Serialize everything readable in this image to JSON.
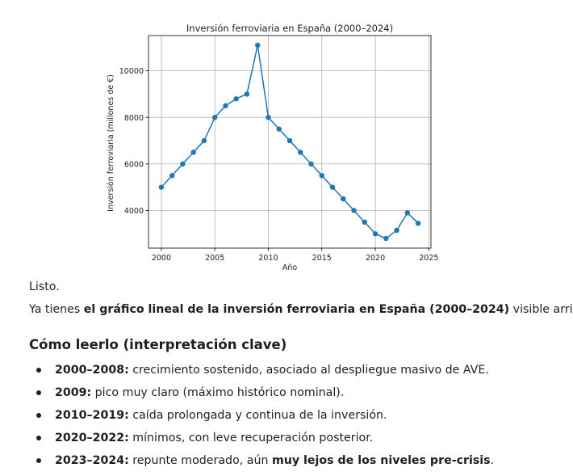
{
  "chart_data": {
    "type": "line",
    "title": "Inversión ferroviaria en España (2000–2024)",
    "xlabel": "Año",
    "ylabel": "Inversión ferroviaria (millones de €)",
    "x": [
      2000,
      2001,
      2002,
      2003,
      2004,
      2005,
      2006,
      2007,
      2008,
      2009,
      2010,
      2011,
      2012,
      2013,
      2014,
      2015,
      2016,
      2017,
      2018,
      2019,
      2020,
      2021,
      2022,
      2023,
      2024
    ],
    "series": [
      {
        "values": [
          5000,
          5500,
          6000,
          6500,
          7000,
          8000,
          8500,
          8800,
          9000,
          11100,
          8000,
          7500,
          7000,
          6500,
          6000,
          5500,
          5000,
          4500,
          4000,
          3500,
          3000,
          2800,
          3150,
          3900,
          3450
        ]
      }
    ],
    "xticks": [
      2000,
      2005,
      2010,
      2015,
      2020,
      2025
    ],
    "yticks": [
      4000,
      6000,
      8000,
      10000
    ],
    "xlim": [
      1998.8,
      2025.2
    ],
    "ylim": [
      2385,
      11515
    ],
    "grid": true,
    "line_color": "#1f77b4"
  },
  "message": {
    "status_line": "Listo.",
    "intro_prefix": "Ya tienes ",
    "intro_bold": "el gráfico lineal de la inversión ferroviaria en España (2000–2024)",
    "intro_suffix": " visible arriba.",
    "section_heading": "Cómo leerlo (interpretación clave)",
    "points": [
      {
        "bold": "2000–2008:",
        "text": " crecimiento sostenido, asociado al despliegue masivo de AVE."
      },
      {
        "bold": "2009:",
        "text": " pico muy claro (máximo histórico nominal)."
      },
      {
        "bold": "2010–2019:",
        "text": " caída prolongada y continua de la inversión."
      },
      {
        "bold": "2020–2022:",
        "text": " mínimos, con leve recuperación posterior."
      },
      {
        "bold": "2023–2024:",
        "text": " repunte moderado, aún ",
        "bold2": "muy lejos de los niveles pre-crisis",
        "text2": "."
      }
    ]
  }
}
